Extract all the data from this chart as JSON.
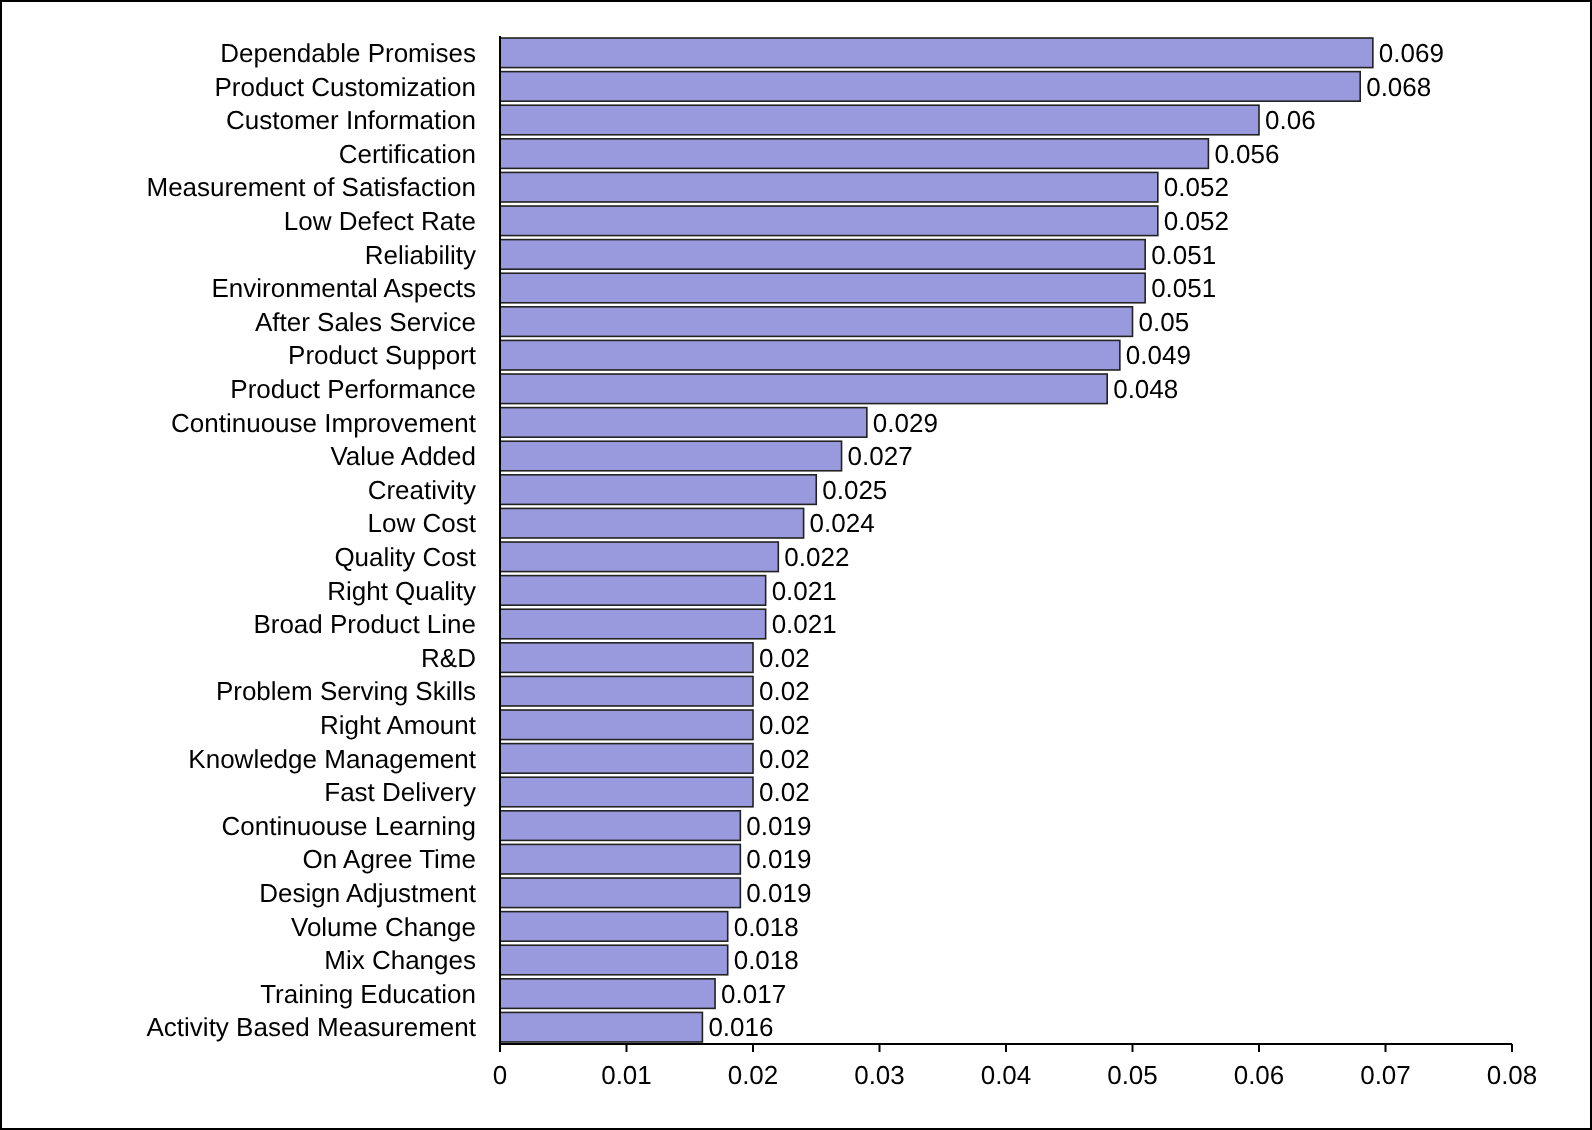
{
  "chart_data": {
    "type": "bar",
    "orientation": "horizontal",
    "categories": [
      "Dependable Promises",
      "Product Customization",
      "Customer Information",
      "Certification",
      "Measurement of Satisfaction",
      "Low Defect Rate",
      "Reliability",
      "Environmental Aspects",
      "After Sales Service",
      "Product Support",
      "Product Performance",
      "Continuouse Improvement",
      "Value Added",
      "Creativity",
      "Low Cost",
      "Quality Cost",
      "Right Quality",
      "Broad Product Line",
      "R&D",
      "Problem Serving Skills",
      "Right Amount",
      "Knowledge Management",
      "Fast Delivery",
      "Continuouse Learning",
      "On Agree Time",
      "Design Adjustment",
      "Volume Change",
      "Mix Changes",
      "Training Education",
      "Activity Based Measurement"
    ],
    "values": [
      0.069,
      0.068,
      0.06,
      0.056,
      0.052,
      0.052,
      0.051,
      0.051,
      0.05,
      0.049,
      0.048,
      0.029,
      0.027,
      0.025,
      0.024,
      0.022,
      0.021,
      0.021,
      0.02,
      0.02,
      0.02,
      0.02,
      0.02,
      0.019,
      0.019,
      0.019,
      0.018,
      0.018,
      0.017,
      0.016
    ],
    "color": "#9999dd",
    "data_labels": true,
    "xlim": [
      0,
      0.08
    ],
    "xticks": [
      0,
      0.01,
      0.02,
      0.03,
      0.04,
      0.05,
      0.06,
      0.07,
      0.08
    ]
  }
}
